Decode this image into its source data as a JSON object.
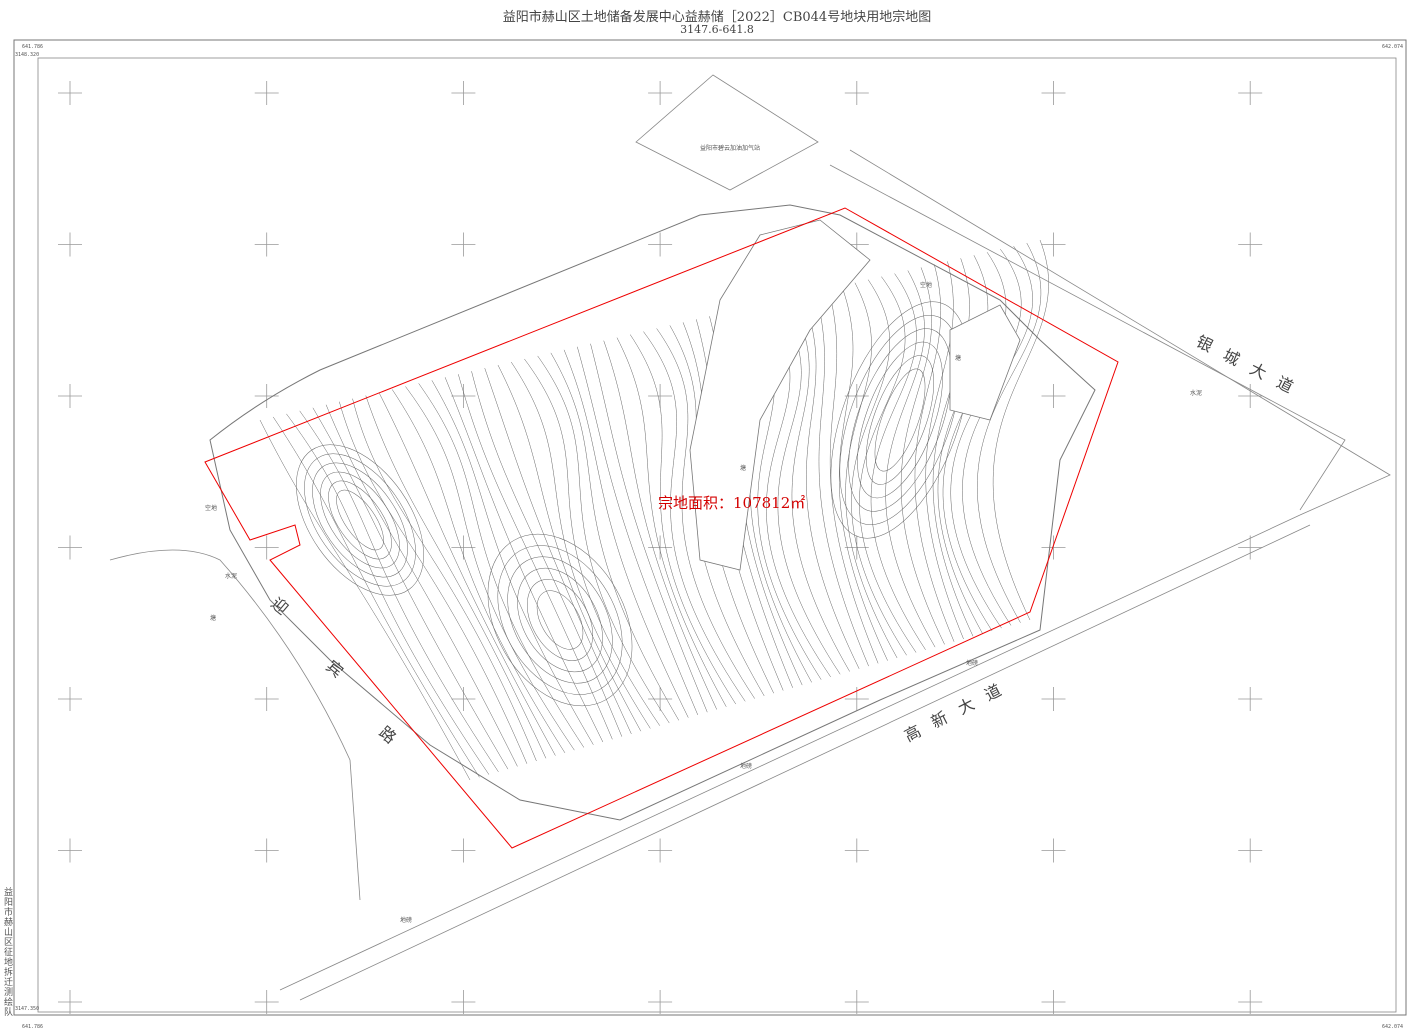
{
  "header": {
    "title": "益阳市赫山区土地储备发展中心益赫储［2022］CB044号地块用地宗地图",
    "subtitle": "3147.6-641.8"
  },
  "map": {
    "area_label": "宗地面积：107812㎡",
    "roads": [
      "银城大道",
      "高新大道",
      "迎",
      "宾",
      "路"
    ],
    "gas_station": "益阳市碧云加油加气站",
    "features": [
      "塘",
      "塘",
      "塘",
      "空地",
      "空地",
      "水泥",
      "水泥",
      "地磅",
      "地磅",
      "地磅"
    ],
    "corners": {
      "top_left_x": "641.786",
      "top_left_y": "3148.320",
      "top_right_x": "642.074",
      "bottom_left_x": "641.786",
      "bottom_left_y": "3147.350",
      "bottom_right_x": "642.074"
    },
    "side_text": "益阳市赫山区征地拆迁测绘队"
  }
}
